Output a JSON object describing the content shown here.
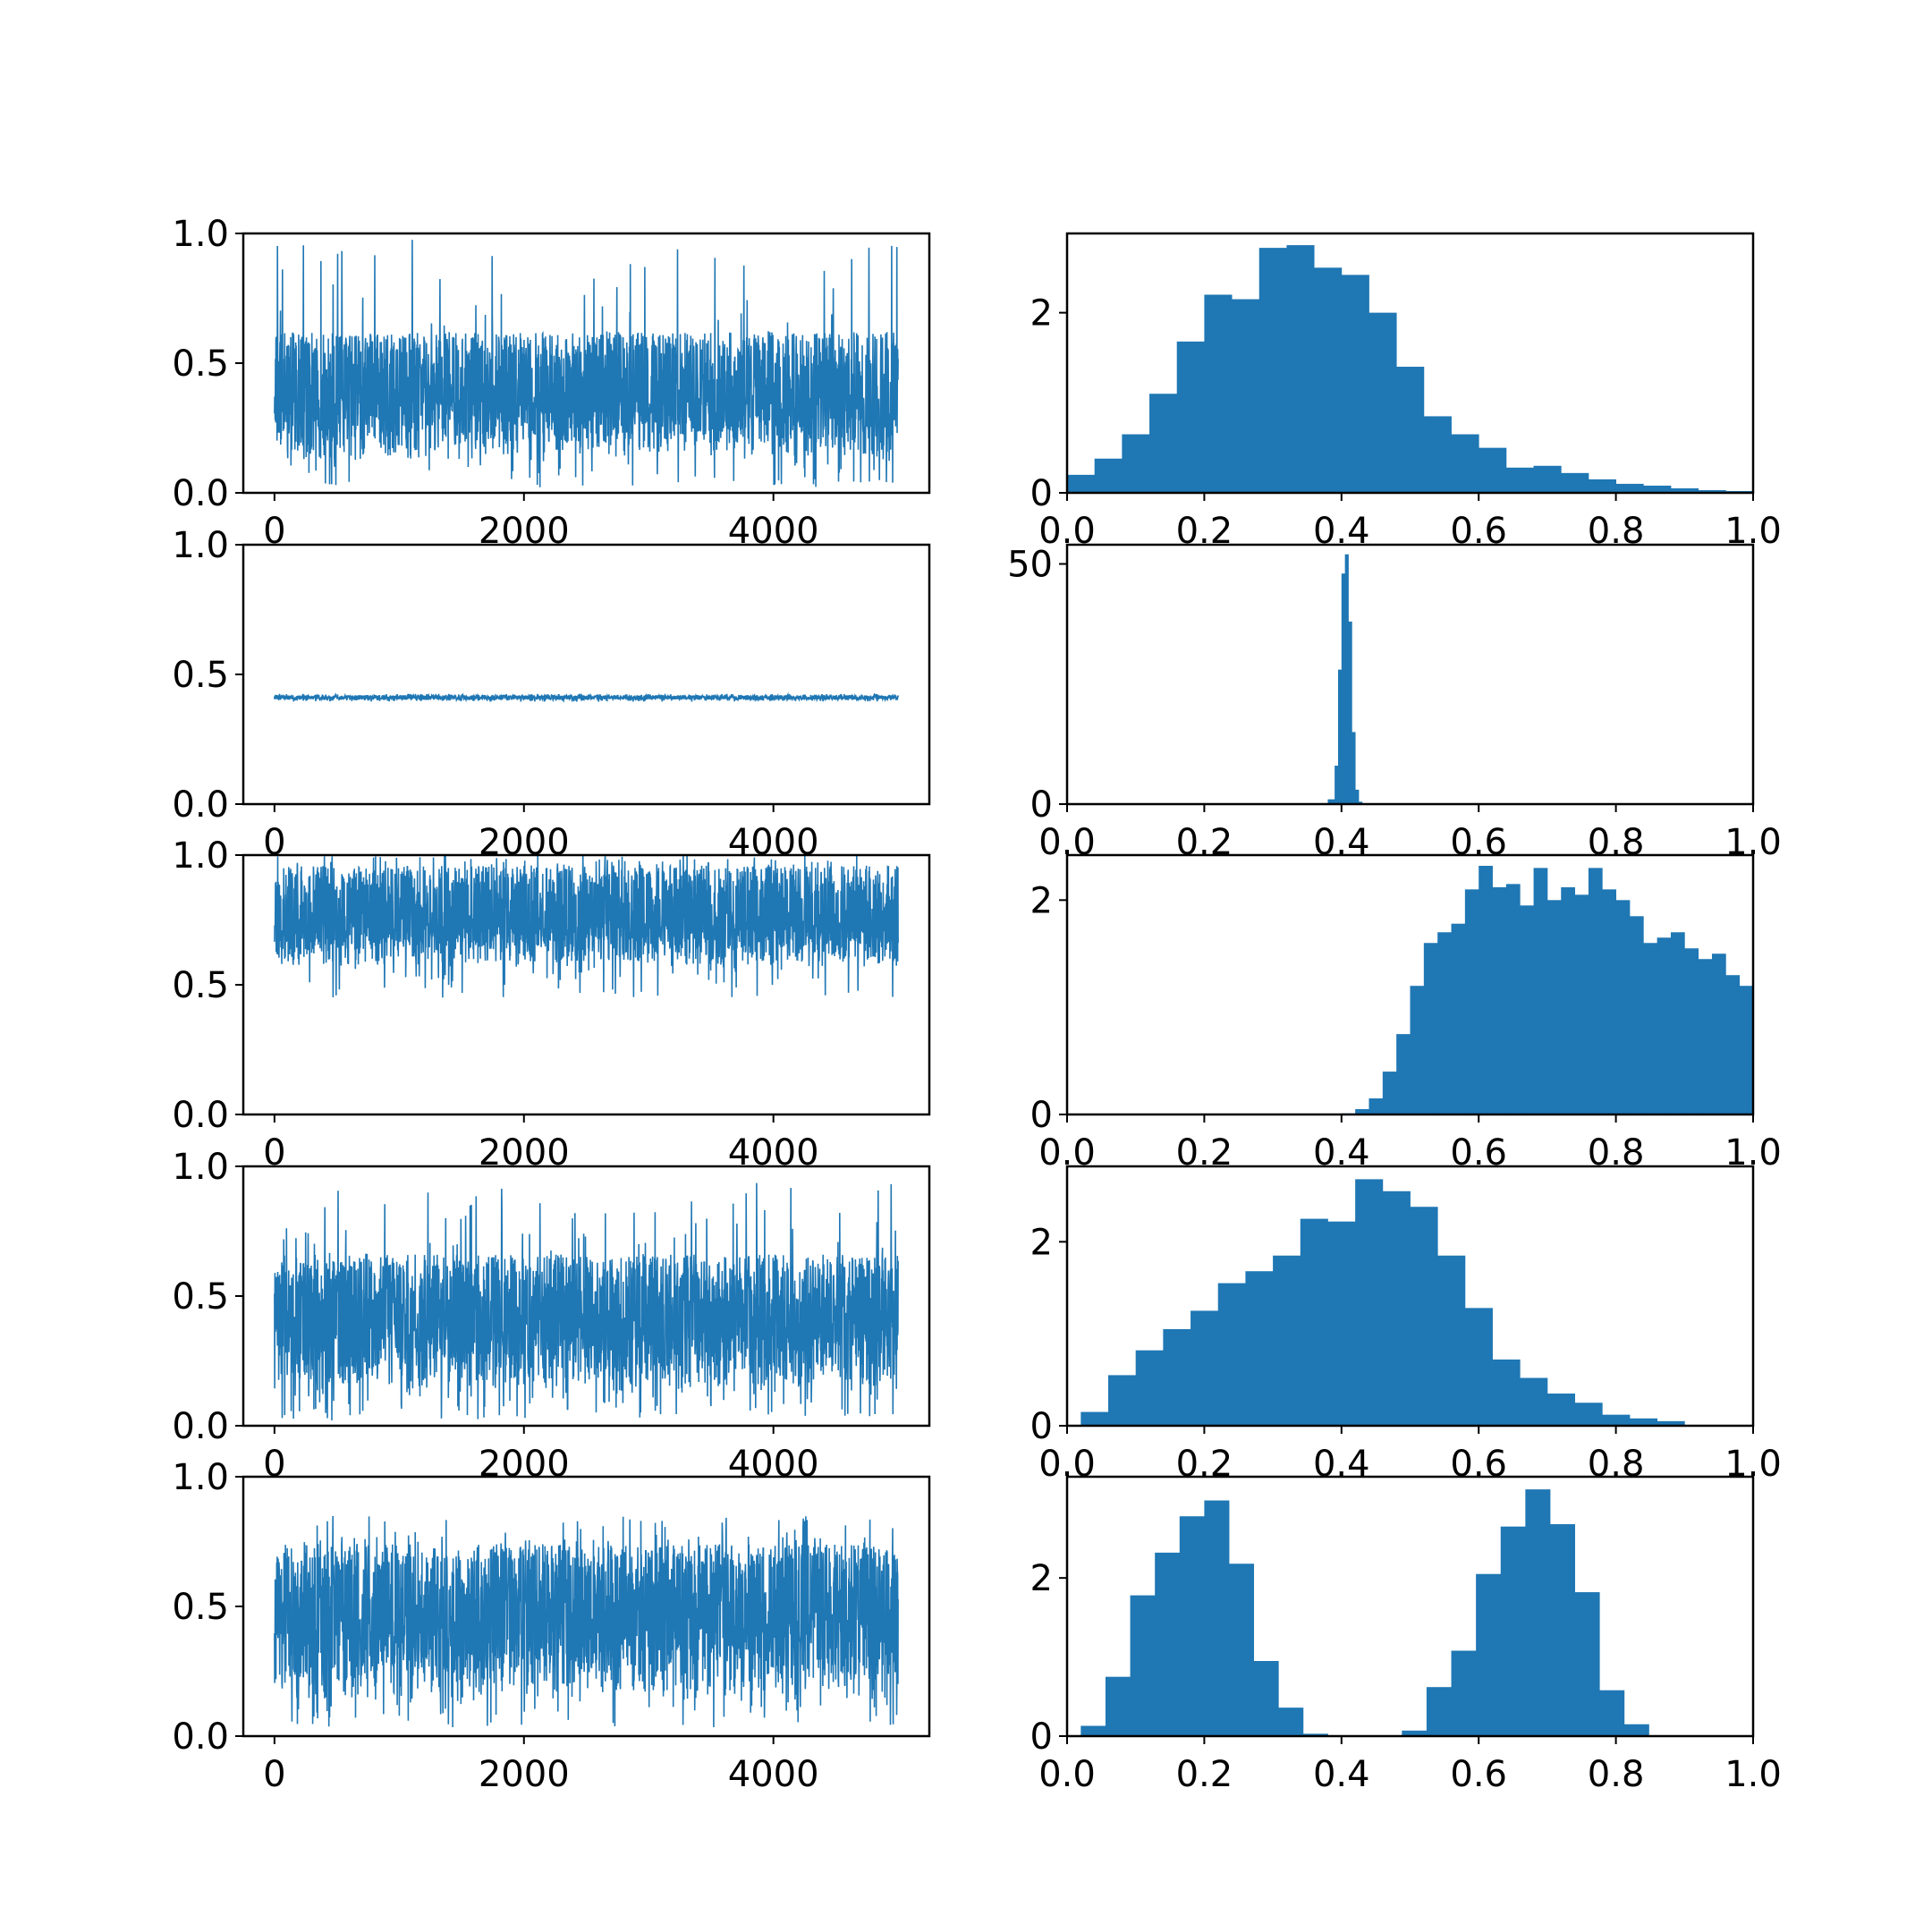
{
  "colors": {
    "series": "#1f77b4",
    "axes": "#000000",
    "background": "#ffffff"
  },
  "chart_data": [
    {
      "type": "line",
      "subplot": "row1-trace",
      "x_range": [
        0,
        5000
      ],
      "xlim": [
        -250,
        5250
      ],
      "ylim": [
        0,
        1
      ],
      "xticks": [
        "0",
        "2000",
        "4000"
      ],
      "yticks": [
        "0.0",
        "0.5",
        "1.0"
      ],
      "grid": false,
      "legend": "none",
      "band": {
        "center": 0.35,
        "low": 0.12,
        "high": 0.62,
        "min": 0.02,
        "max": 0.98
      }
    },
    {
      "type": "bar",
      "subplot": "row1-histogram",
      "bin_edges": [
        0.0,
        0.04,
        0.08,
        0.12,
        0.16,
        0.2,
        0.24,
        0.28,
        0.32,
        0.36,
        0.4,
        0.44,
        0.48,
        0.52,
        0.56,
        0.6,
        0.64,
        0.68,
        0.72,
        0.76,
        0.8,
        0.84,
        0.88,
        0.92,
        0.96,
        1.0
      ],
      "values": [
        0.2,
        0.38,
        0.65,
        1.1,
        1.68,
        2.2,
        2.15,
        2.72,
        2.75,
        2.5,
        2.42,
        2.0,
        1.4,
        0.85,
        0.65,
        0.5,
        0.28,
        0.3,
        0.22,
        0.15,
        0.1,
        0.08,
        0.05,
        0.03,
        0.02
      ],
      "xlim": [
        0,
        1
      ],
      "ylim": [
        0,
        2.88
      ],
      "xticks": [
        "0.0",
        "0.2",
        "0.4",
        "0.6",
        "0.8",
        "1.0"
      ],
      "yticks": [
        "0",
        "2"
      ],
      "grid": false,
      "legend": "none"
    },
    {
      "type": "line",
      "subplot": "row2-trace",
      "x_range": [
        0,
        5000
      ],
      "xlim": [
        -250,
        5250
      ],
      "ylim": [
        0,
        1
      ],
      "xticks": [
        "0",
        "2000",
        "4000"
      ],
      "yticks": [
        "0.0",
        "0.5",
        "1.0"
      ],
      "grid": false,
      "legend": "none",
      "band": {
        "center": 0.41,
        "low": 0.4,
        "high": 0.42,
        "min": 0.395,
        "max": 0.425
      }
    },
    {
      "type": "bar",
      "subplot": "row2-histogram",
      "bin_edges": [
        0.38,
        0.39,
        0.395,
        0.4,
        0.405,
        0.41,
        0.415,
        0.42,
        0.425,
        0.43
      ],
      "values": [
        1,
        8,
        28,
        48,
        52,
        38,
        15,
        3,
        0.5
      ],
      "xlim": [
        0,
        1
      ],
      "ylim": [
        0,
        54
      ],
      "xticks": [
        "0.0",
        "0.2",
        "0.4",
        "0.6",
        "0.8",
        "1.0"
      ],
      "yticks": [
        "0",
        "50"
      ],
      "grid": false,
      "legend": "none"
    },
    {
      "type": "line",
      "subplot": "row3-trace",
      "x_range": [
        0,
        5000
      ],
      "xlim": [
        -250,
        5250
      ],
      "ylim": [
        0,
        1
      ],
      "xticks": [
        "0",
        "2000",
        "4000"
      ],
      "yticks": [
        "0.0",
        "0.5",
        "1.0"
      ],
      "grid": false,
      "legend": "none",
      "band": {
        "center": 0.73,
        "low": 0.56,
        "high": 0.96,
        "min": 0.45,
        "max": 1.0
      }
    },
    {
      "type": "bar",
      "subplot": "row3-histogram",
      "bin_edges": [
        0.4,
        0.42,
        0.44,
        0.46,
        0.48,
        0.5,
        0.52,
        0.54,
        0.56,
        0.58,
        0.6,
        0.62,
        0.64,
        0.66,
        0.68,
        0.7,
        0.72,
        0.74,
        0.76,
        0.78,
        0.8,
        0.82,
        0.84,
        0.86,
        0.88,
        0.9,
        0.92,
        0.94,
        0.96,
        0.98,
        1.0
      ],
      "values": [
        0.01,
        0.05,
        0.15,
        0.4,
        0.75,
        1.2,
        1.6,
        1.7,
        1.78,
        2.1,
        2.32,
        2.12,
        2.15,
        1.95,
        2.3,
        2.0,
        2.12,
        2.05,
        2.3,
        2.1,
        2.0,
        1.85,
        1.6,
        1.65,
        1.7,
        1.55,
        1.45,
        1.5,
        1.3,
        1.2
      ],
      "xlim": [
        0,
        1
      ],
      "ylim": [
        0,
        2.42
      ],
      "xticks": [
        "0.0",
        "0.2",
        "0.4",
        "0.6",
        "0.8",
        "1.0"
      ],
      "yticks": [
        "0",
        "2"
      ],
      "grid": false,
      "legend": "none"
    },
    {
      "type": "line",
      "subplot": "row4-trace",
      "x_range": [
        0,
        5000
      ],
      "xlim": [
        -250,
        5250
      ],
      "ylim": [
        0,
        1
      ],
      "xticks": [
        "0",
        "2000",
        "4000"
      ],
      "yticks": [
        "0.0",
        "0.5",
        "1.0"
      ],
      "grid": false,
      "legend": "none",
      "band": {
        "center": 0.38,
        "low": 0.12,
        "high": 0.66,
        "min": 0.02,
        "max": 0.96
      }
    },
    {
      "type": "bar",
      "subplot": "row4-histogram",
      "bin_edges": [
        0.02,
        0.06,
        0.1,
        0.14,
        0.18,
        0.22,
        0.26,
        0.3,
        0.34,
        0.38,
        0.42,
        0.46,
        0.5,
        0.54,
        0.58,
        0.62,
        0.66,
        0.7,
        0.74,
        0.78,
        0.82,
        0.86,
        0.9
      ],
      "values": [
        0.15,
        0.55,
        0.82,
        1.05,
        1.25,
        1.55,
        1.68,
        1.85,
        2.25,
        2.22,
        2.68,
        2.55,
        2.38,
        1.85,
        1.28,
        0.72,
        0.52,
        0.35,
        0.25,
        0.12,
        0.08,
        0.05
      ],
      "xlim": [
        0,
        1
      ],
      "ylim": [
        0,
        2.82
      ],
      "xticks": [
        "0.0",
        "0.2",
        "0.4",
        "0.6",
        "0.8",
        "1.0"
      ],
      "yticks": [
        "0",
        "2"
      ],
      "grid": false,
      "legend": "none"
    },
    {
      "type": "line",
      "subplot": "row5-trace",
      "x_range": [
        0,
        5000
      ],
      "xlim": [
        -250,
        5250
      ],
      "ylim": [
        0,
        1
      ],
      "xticks": [
        "0",
        "2000",
        "4000"
      ],
      "yticks": [
        "0.0",
        "0.5",
        "1.0"
      ],
      "grid": false,
      "legend": "none",
      "band": {
        "center": 0.45,
        "low": 0.12,
        "high": 0.74,
        "min": 0.03,
        "max": 0.85
      }
    },
    {
      "type": "bar",
      "subplot": "row5-histogram",
      "bin_edges": [
        0.02,
        0.056,
        0.092,
        0.128,
        0.164,
        0.2,
        0.236,
        0.272,
        0.308,
        0.344,
        0.38,
        0.416,
        0.452,
        0.488,
        0.524,
        0.56,
        0.596,
        0.632,
        0.668,
        0.704,
        0.74,
        0.776,
        0.812,
        0.848
      ],
      "values": [
        0.13,
        0.75,
        1.78,
        2.32,
        2.78,
        2.98,
        2.18,
        0.95,
        0.36,
        0.03,
        0.01,
        0.01,
        0.01,
        0.07,
        0.62,
        1.08,
        2.05,
        2.65,
        3.12,
        2.68,
        1.82,
        0.58,
        0.15
      ],
      "xlim": [
        0,
        1
      ],
      "ylim": [
        0,
        3.28
      ],
      "xticks": [
        "0.0",
        "0.2",
        "0.4",
        "0.6",
        "0.8",
        "1.0"
      ],
      "yticks": [
        "0",
        "2"
      ],
      "grid": false,
      "legend": "none"
    }
  ]
}
